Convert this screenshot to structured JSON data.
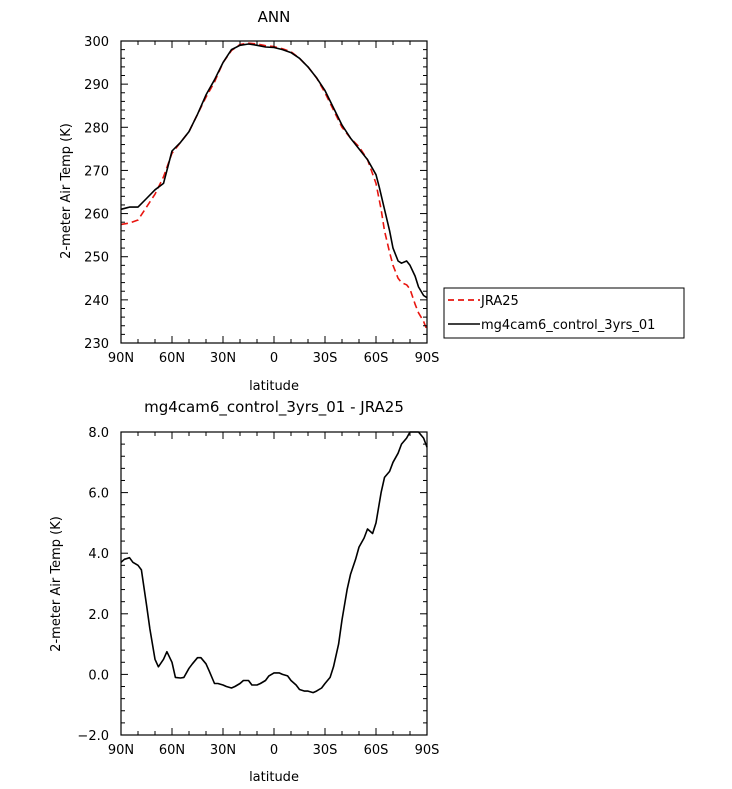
{
  "chart_data": [
    {
      "type": "line",
      "title": "ANN",
      "xlabel": "latitude",
      "ylabel": "2-meter Air Temp (K)",
      "xlim": [
        90,
        -90
      ],
      "ylim": [
        230,
        300
      ],
      "xticks": [
        90,
        60,
        30,
        0,
        -30,
        -60,
        -90
      ],
      "xtick_labels": [
        "90N",
        "60N",
        "30N",
        "0",
        "30S",
        "60S",
        "90S"
      ],
      "yticks": [
        230,
        240,
        250,
        260,
        270,
        280,
        290,
        300
      ],
      "ytick_labels": [
        "230",
        "240",
        "250",
        "260",
        "270",
        "280",
        "290",
        "300"
      ],
      "legend_position": "outside-right",
      "series": [
        {
          "name": "JRA25",
          "color": "#e8150f",
          "dash": "dashed",
          "x": [
            90,
            85,
            80,
            75,
            70,
            65,
            60,
            55,
            50,
            45,
            40,
            35,
            30,
            25,
            20,
            15,
            10,
            5,
            0,
            -5,
            -10,
            -15,
            -20,
            -25,
            -30,
            -35,
            -40,
            -45,
            -50,
            -55,
            -60,
            -63,
            -65,
            -68,
            -70,
            -73,
            -75,
            -78,
            -80,
            -83,
            -85,
            -88,
            -90
          ],
          "y": [
            257.5,
            257.8,
            258.5,
            261.5,
            264.5,
            268.5,
            274,
            276.5,
            279,
            283,
            287,
            290.5,
            295,
            297.8,
            299.2,
            299.5,
            299.3,
            298.9,
            298.7,
            298.2,
            297.5,
            296,
            294,
            291.5,
            288,
            284,
            280,
            277.5,
            275.5,
            272.5,
            267,
            261,
            256,
            251,
            248,
            245,
            244,
            243.5,
            242.5,
            239,
            237,
            235,
            233
          ]
        },
        {
          "name": "mg4cam6_control_3yrs_01",
          "color": "#000000",
          "dash": "solid",
          "x": [
            90,
            85,
            80,
            75,
            70,
            65,
            60,
            55,
            50,
            45,
            40,
            35,
            30,
            25,
            20,
            15,
            10,
            5,
            0,
            -5,
            -10,
            -15,
            -20,
            -25,
            -30,
            -35,
            -40,
            -45,
            -50,
            -55,
            -60,
            -62,
            -65,
            -68,
            -70,
            -73,
            -75,
            -78,
            -80,
            -83,
            -85,
            -88,
            -90
          ],
          "y": [
            261,
            261.5,
            261.5,
            263.5,
            265.5,
            267,
            274.5,
            276.5,
            279,
            283,
            287.5,
            291,
            295,
            298,
            299,
            299.3,
            299,
            298.6,
            298.5,
            298,
            297.3,
            296,
            294,
            291.5,
            288.5,
            284.5,
            280.5,
            277.5,
            275,
            272.5,
            269,
            266,
            261,
            256,
            252,
            249,
            248.5,
            249,
            248,
            245.5,
            243,
            241,
            240.5
          ]
        }
      ]
    },
    {
      "type": "line",
      "title": "mg4cam6_control_3yrs_01 - JRA25",
      "xlabel": "latitude",
      "ylabel": "2-meter Air Temp (K)",
      "xlim": [
        90,
        -90
      ],
      "ylim": [
        -2.0,
        8.0
      ],
      "xticks": [
        90,
        60,
        30,
        0,
        -30,
        -60,
        -90
      ],
      "xtick_labels": [
        "90N",
        "60N",
        "30N",
        "0",
        "30S",
        "60S",
        "90S"
      ],
      "yticks": [
        -2.0,
        0.0,
        2.0,
        4.0,
        6.0,
        8.0
      ],
      "ytick_labels": [
        "−2.0",
        "0.0",
        "2.0",
        "4.0",
        "6.0",
        "8.0"
      ],
      "series": [
        {
          "color": "#000000",
          "dash": "solid",
          "x": [
            90,
            88,
            85,
            83,
            80,
            78,
            75,
            73,
            70,
            68,
            65,
            63,
            60,
            58,
            55,
            53,
            50,
            48,
            45,
            43,
            40,
            38,
            35,
            33,
            30,
            28,
            25,
            23,
            20,
            18,
            15,
            13,
            10,
            8,
            5,
            3,
            0,
            -3,
            -5,
            -8,
            -10,
            -13,
            -15,
            -18,
            -20,
            -23,
            -25,
            -28,
            -30,
            -33,
            -35,
            -38,
            -40,
            -43,
            -45,
            -48,
            -50,
            -53,
            -55,
            -58,
            -60,
            -63,
            -65,
            -68,
            -70,
            -73,
            -75,
            -78,
            -80,
            -83,
            -85,
            -88,
            -90
          ],
          "y": [
            3.7,
            3.8,
            3.85,
            3.7,
            3.6,
            3.45,
            2.3,
            1.5,
            0.5,
            0.25,
            0.5,
            0.75,
            0.4,
            -0.1,
            -0.12,
            -0.1,
            0.2,
            0.35,
            0.55,
            0.55,
            0.35,
            0.1,
            -0.3,
            -0.3,
            -0.35,
            -0.4,
            -0.45,
            -0.4,
            -0.3,
            -0.2,
            -0.2,
            -0.35,
            -0.35,
            -0.3,
            -0.2,
            -0.05,
            0.05,
            0.05,
            0.0,
            -0.05,
            -0.2,
            -0.35,
            -0.5,
            -0.55,
            -0.55,
            -0.6,
            -0.55,
            -0.45,
            -0.3,
            -0.1,
            0.25,
            1.0,
            1.8,
            2.8,
            3.3,
            3.8,
            4.2,
            4.5,
            4.8,
            4.65,
            5.0,
            6.0,
            6.5,
            6.7,
            7.0,
            7.3,
            7.6,
            7.8,
            8.0,
            8.0,
            8.0,
            7.8,
            7.5
          ]
        }
      ]
    }
  ]
}
